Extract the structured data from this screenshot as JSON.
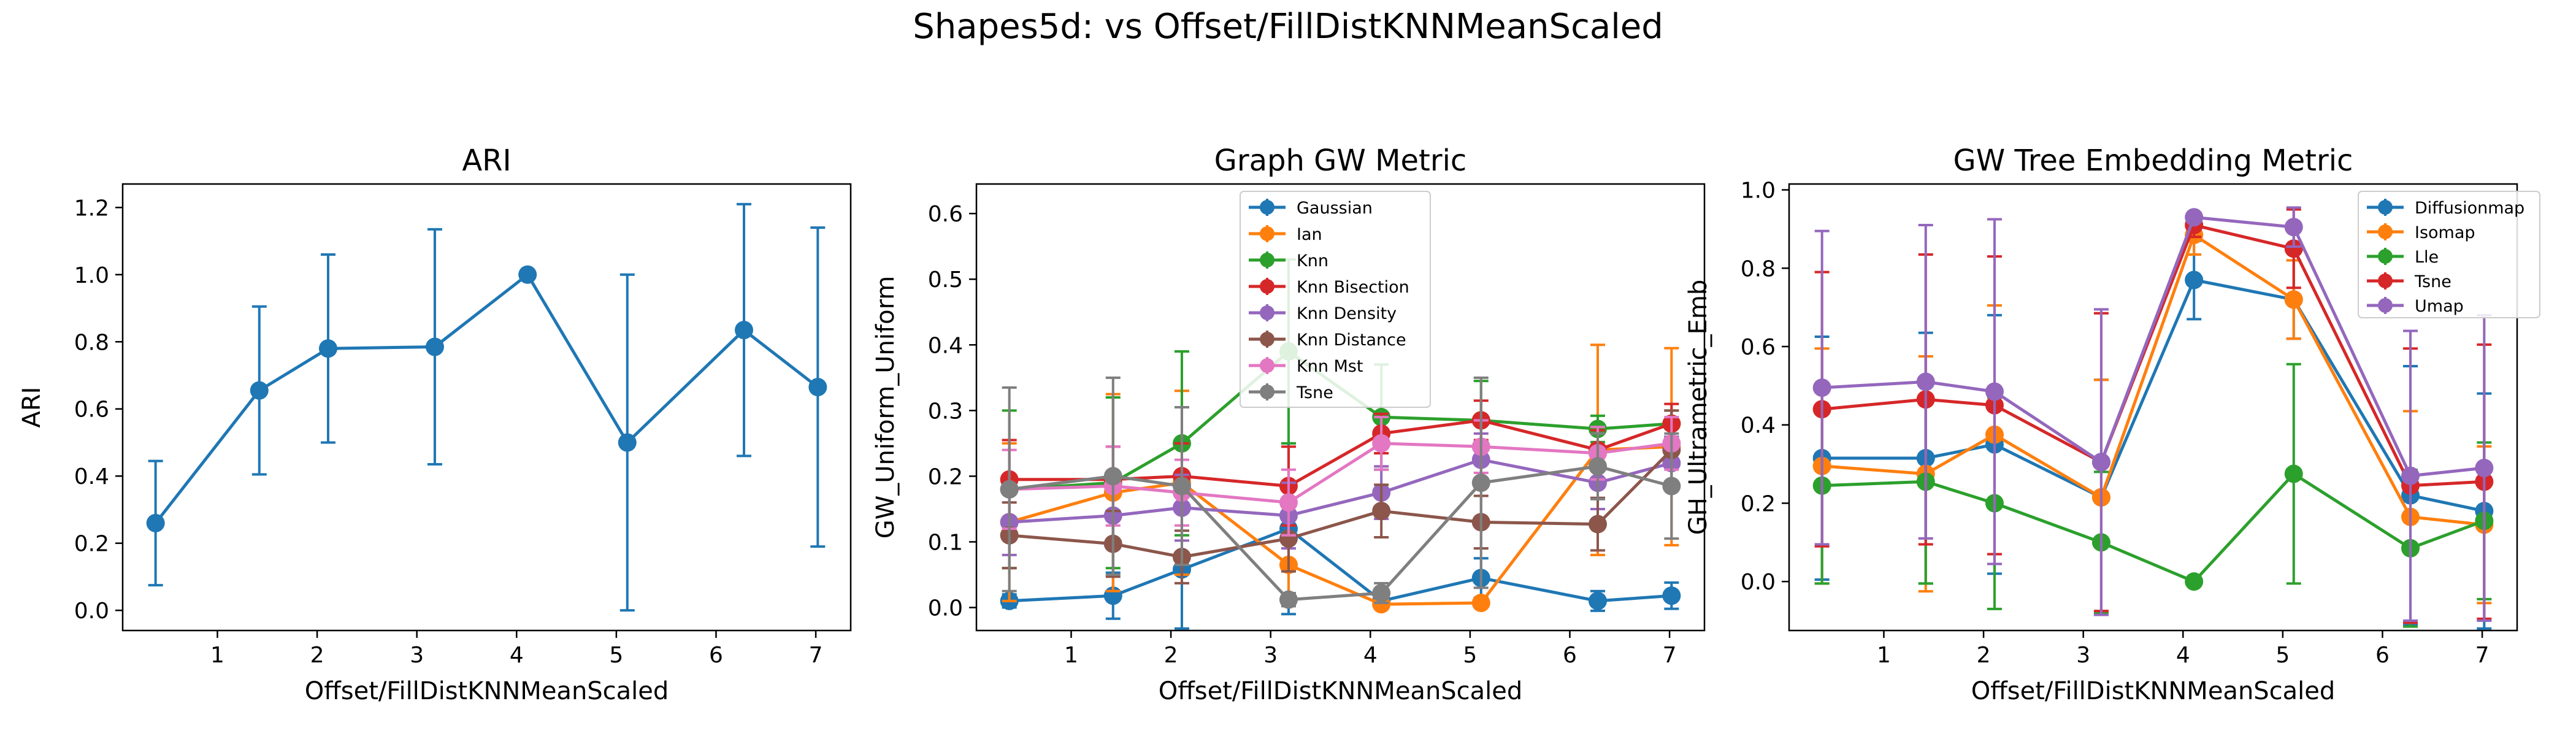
{
  "suptitle": "Shapes5d: vs Offset/FillDistKNNMeanScaled",
  "colors": {
    "Gaussian": "#1f77b4",
    "Ian": "#ff7f0e",
    "Knn": "#2ca02c",
    "Knn Bisection": "#d62728",
    "Knn Density": "#9467bd",
    "Knn Distance": "#8c564b",
    "Knn Mst": "#e377c2",
    "Tsne": "#7f7f7f",
    "Diffusionmap": "#1f77b4",
    "Isomap": "#ff7f0e",
    "Lle": "#2ca02c",
    "Umap": "#9467bd"
  },
  "chart_data": [
    {
      "type": "line",
      "title": "ARI",
      "xlabel": "Offset/FillDistKNNMeanScaled",
      "ylabel": "ARI",
      "xlim": [
        0.05,
        7.35
      ],
      "ylim": [
        -0.06,
        1.27
      ],
      "xticks": [
        1,
        2,
        3,
        4,
        5,
        6,
        7
      ],
      "yticks": [
        0.0,
        0.2,
        0.4,
        0.6,
        0.8,
        1.0,
        1.2
      ],
      "ytick_labels": [
        "0.0",
        "0.2",
        "0.4",
        "0.6",
        "0.8",
        "1.0",
        "1.2"
      ],
      "legend": null,
      "x": [
        0.38,
        1.42,
        2.11,
        3.18,
        4.11,
        5.11,
        6.28,
        7.02
      ],
      "series": [
        {
          "color": "#1f77b4",
          "values": [
            0.26,
            0.655,
            0.78,
            0.785,
            1.0,
            0.5,
            0.835,
            0.665
          ],
          "errors": [
            0.185,
            0.25,
            0.28,
            0.35,
            0.0,
            0.5,
            0.375,
            0.475
          ]
        }
      ]
    },
    {
      "type": "line",
      "title": "Graph GW Metric",
      "xlabel": "Offset/FillDistKNNMeanScaled",
      "ylabel": "GW_Uniform_Uniform",
      "xlim": [
        0.05,
        7.35
      ],
      "ylim": [
        -0.035,
        0.645
      ],
      "xticks": [
        1,
        2,
        3,
        4,
        5,
        6,
        7
      ],
      "yticks": [
        0.0,
        0.1,
        0.2,
        0.3,
        0.4,
        0.5,
        0.6
      ],
      "ytick_labels": [
        "0.0",
        "0.1",
        "0.2",
        "0.3",
        "0.4",
        "0.5",
        "0.6"
      ],
      "legend": "upper-center",
      "x": [
        0.38,
        1.42,
        2.11,
        3.18,
        4.11,
        5.11,
        6.28,
        7.02
      ],
      "series": [
        {
          "name": "Gaussian",
          "color": "#1f77b4",
          "values": [
            0.01,
            0.018,
            0.058,
            0.12,
            0.01,
            0.045,
            0.01,
            0.018
          ],
          "errors": [
            0.01,
            0.035,
            0.09,
            0.13,
            0.01,
            0.03,
            0.015,
            0.02
          ]
        },
        {
          "name": "Ian",
          "color": "#ff7f0e",
          "values": [
            0.13,
            0.175,
            0.19,
            0.065,
            0.005,
            0.007,
            0.24,
            0.245
          ],
          "errors": [
            0.12,
            0.15,
            0.14,
            0.06,
            0.005,
            0.006,
            0.16,
            0.15
          ]
        },
        {
          "name": "Knn",
          "color": "#2ca02c",
          "values": [
            0.18,
            0.19,
            0.25,
            0.39,
            0.29,
            0.285,
            0.272,
            0.28
          ],
          "errors": [
            0.12,
            0.13,
            0.14,
            0.14,
            0.08,
            0.06,
            0.02,
            0.02
          ]
        },
        {
          "name": "Knn Bisection",
          "color": "#d62728",
          "values": [
            0.195,
            0.195,
            0.2,
            0.185,
            0.265,
            0.285,
            0.24,
            0.28
          ],
          "errors": [
            0.06,
            0.05,
            0.05,
            0.06,
            0.03,
            0.03,
            0.03,
            0.03
          ]
        },
        {
          "name": "Knn Density",
          "color": "#9467bd",
          "values": [
            0.13,
            0.14,
            0.152,
            0.14,
            0.175,
            0.225,
            0.19,
            0.22
          ],
          "errors": [
            0.05,
            0.05,
            0.05,
            0.05,
            0.04,
            0.04,
            0.04,
            0.04
          ]
        },
        {
          "name": "Knn Distance",
          "color": "#8c564b",
          "values": [
            0.11,
            0.097,
            0.077,
            0.105,
            0.147,
            0.13,
            0.127,
            0.24
          ],
          "errors": [
            0.05,
            0.05,
            0.04,
            0.05,
            0.04,
            0.04,
            0.04,
            0.06
          ]
        },
        {
          "name": "Knn Mst",
          "color": "#e377c2",
          "values": [
            0.18,
            0.185,
            0.175,
            0.16,
            0.25,
            0.245,
            0.235,
            0.25
          ],
          "errors": [
            0.06,
            0.06,
            0.05,
            0.05,
            0.04,
            0.04,
            0.04,
            0.04
          ]
        },
        {
          "name": "Tsne",
          "color": "#7f7f7f",
          "values": [
            0.18,
            0.2,
            0.185,
            0.012,
            0.022,
            0.19,
            0.215,
            0.185
          ],
          "errors": [
            0.155,
            0.15,
            0.12,
            0.01,
            0.015,
            0.16,
            0.05,
            0.08
          ]
        }
      ]
    },
    {
      "type": "line",
      "title": "GW Tree Embedding Metric",
      "xlabel": "Offset/FillDistKNNMeanScaled",
      "ylabel": "GH_Ultrametric_Emb",
      "xlim": [
        0.05,
        7.35
      ],
      "ylim": [
        -0.125,
        1.015
      ],
      "xticks": [
        1,
        2,
        3,
        4,
        5,
        6,
        7
      ],
      "yticks": [
        0.0,
        0.2,
        0.4,
        0.6,
        0.8,
        1.0
      ],
      "ytick_labels": [
        "0.0",
        "0.2",
        "0.4",
        "0.6",
        "0.8",
        "1.0"
      ],
      "legend": "top-right",
      "x": [
        0.38,
        1.42,
        2.11,
        3.18,
        4.11,
        5.11,
        6.28,
        7.02
      ],
      "series": [
        {
          "name": "Diffusionmap",
          "color": "#1f77b4",
          "values": [
            0.315,
            0.315,
            0.35,
            0.215,
            0.77,
            0.72,
            0.22,
            0.18
          ],
          "errors": [
            0.31,
            0.32,
            0.33,
            0.3,
            0.1,
            0.1,
            0.33,
            0.3
          ]
        },
        {
          "name": "Isomap",
          "color": "#ff7f0e",
          "values": [
            0.295,
            0.275,
            0.375,
            0.215,
            0.885,
            0.72,
            0.165,
            0.145
          ],
          "errors": [
            0.3,
            0.3,
            0.33,
            0.3,
            0.05,
            0.1,
            0.27,
            0.2
          ]
        },
        {
          "name": "Lle",
          "color": "#2ca02c",
          "values": [
            0.245,
            0.255,
            0.2,
            0.1,
            0.0,
            0.275,
            0.085,
            0.155
          ],
          "errors": [
            0.25,
            0.26,
            0.27,
            0.18,
            0.005,
            0.28,
            0.2,
            0.2
          ]
        },
        {
          "name": "Tsne",
          "color": "#d62728",
          "values": [
            0.44,
            0.465,
            0.45,
            0.305,
            0.91,
            0.85,
            0.245,
            0.255
          ],
          "errors": [
            0.35,
            0.37,
            0.38,
            0.38,
            0.03,
            0.1,
            0.35,
            0.35
          ]
        },
        {
          "name": "Umap",
          "color": "#9467bd",
          "values": [
            0.495,
            0.51,
            0.485,
            0.305,
            0.93,
            0.905,
            0.27,
            0.29
          ],
          "errors": [
            0.4,
            0.4,
            0.44,
            0.39,
            0.01,
            0.05,
            0.37,
            0.39
          ]
        }
      ]
    }
  ]
}
